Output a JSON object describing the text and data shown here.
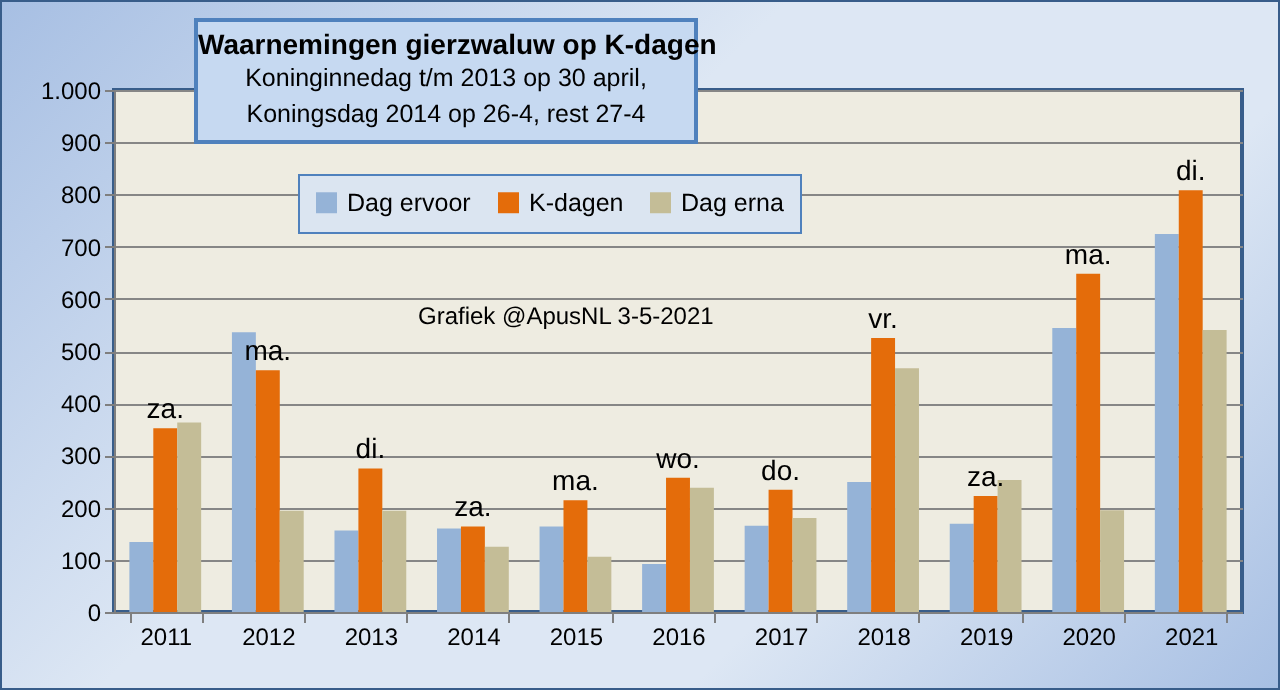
{
  "chart_data": {
    "type": "bar",
    "title": "Waarnemingen gierzwaluw op K-dagen",
    "subtitle": "Koninginnedag t/m 2013 op 30 april,\nKoningsdag 2014 op 26-4, rest 27-4",
    "categories": [
      "2011",
      "2012",
      "2013",
      "2014",
      "2015",
      "2016",
      "2017",
      "2018",
      "2019",
      "2020",
      "2021"
    ],
    "series": [
      {
        "name": "Dag ervoor",
        "color": "#95b3d7",
        "values": [
          134,
          536,
          156,
          160,
          164,
          92,
          165,
          249,
          169,
          544,
          724
        ]
      },
      {
        "name": "K-dagen",
        "color": "#e46c0a",
        "values": [
          352,
          463,
          275,
          164,
          214,
          257,
          234,
          525,
          222,
          648,
          808
        ]
      },
      {
        "name": "Dag erna",
        "color": "#c4bd97",
        "values": [
          363,
          194,
          194,
          125,
          106,
          238,
          180,
          467,
          253,
          195,
          540
        ]
      }
    ],
    "ylim": [
      0,
      1000
    ],
    "yticks": [
      0,
      100,
      200,
      300,
      400,
      500,
      600,
      700,
      800,
      900,
      {
        "value": 1000,
        "label": "1.000"
      }
    ],
    "grid": "y",
    "legend": "top",
    "annotations": [
      {
        "text": "za.",
        "x": "2011",
        "y": 352
      },
      {
        "text": "ma.",
        "x": "2012",
        "y": 463
      },
      {
        "text": "di.",
        "x": "2013",
        "y": 275
      },
      {
        "text": "za.",
        "x": "2014",
        "y": 164
      },
      {
        "text": "ma.",
        "x": "2015",
        "y": 214
      },
      {
        "text": "wo.",
        "x": "2016",
        "y": 257
      },
      {
        "text": "do.",
        "x": "2017",
        "y": 234
      },
      {
        "text": "vr.",
        "x": "2018",
        "y": 525
      },
      {
        "text": "za.",
        "x": "2019",
        "y": 222
      },
      {
        "text": "ma.",
        "x": "2020",
        "y": 648
      },
      {
        "text": "di.",
        "x": "2021",
        "y": 808
      },
      "Grafiek @ApusNL 3-5-2021"
    ]
  }
}
